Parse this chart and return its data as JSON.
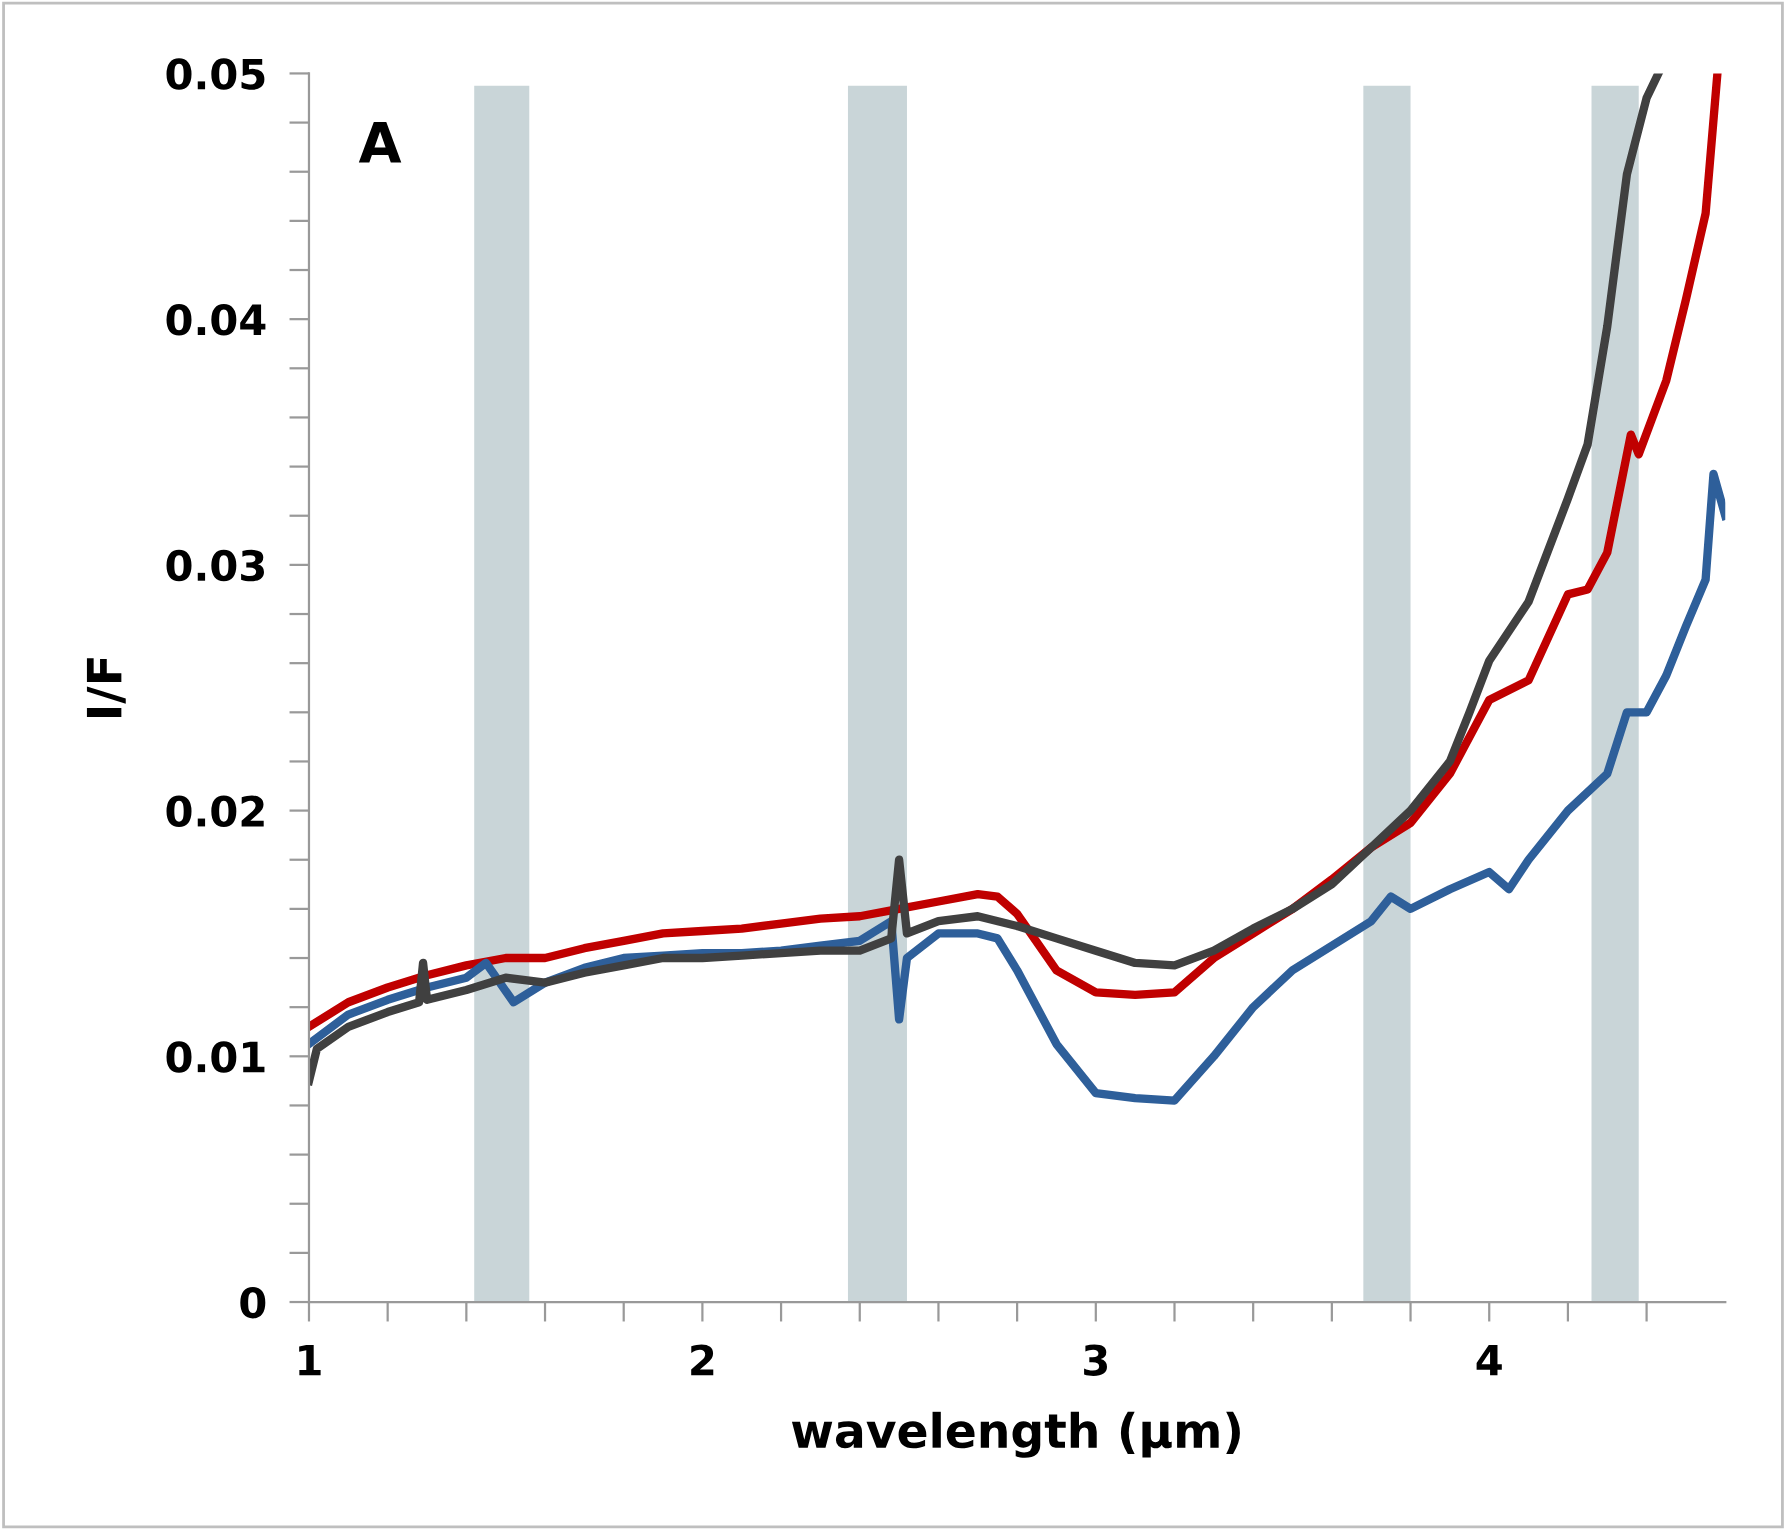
{
  "chart_data": {
    "type": "line",
    "xlabel": "wavelength (µm)",
    "ylabel": "I/F",
    "annotations": [
      "A"
    ],
    "xlim": [
      1,
      4.6
    ],
    "ylim": [
      0,
      0.05
    ],
    "xticks": [
      1,
      {
        "value": 1.2,
        "label": null
      },
      {
        "value": 1.4,
        "label": null
      },
      {
        "value": 1.6,
        "label": null
      },
      {
        "value": 1.8,
        "label": null
      },
      2,
      {
        "value": 2.2,
        "label": null
      },
      {
        "value": 2.4,
        "label": null
      },
      {
        "value": 2.6,
        "label": null
      },
      {
        "value": 2.8,
        "label": null
      },
      3,
      {
        "value": 3.2,
        "label": null
      },
      {
        "value": 3.4,
        "label": null
      },
      {
        "value": 3.6,
        "label": null
      },
      {
        "value": 3.8,
        "label": null
      },
      4,
      {
        "value": 4.2,
        "label": null
      },
      {
        "value": 4.4,
        "label": null
      }
    ],
    "yticks": [
      0,
      {
        "value": 0.002,
        "label": null
      },
      {
        "value": 0.004,
        "label": null
      },
      {
        "value": 0.006,
        "label": null
      },
      {
        "value": 0.008,
        "label": null
      },
      0.01,
      {
        "value": 0.012,
        "label": null
      },
      {
        "value": 0.014,
        "label": null
      },
      {
        "value": 0.016,
        "label": null
      },
      {
        "value": 0.018,
        "label": null
      },
      0.02,
      {
        "value": 0.022,
        "label": null
      },
      {
        "value": 0.024,
        "label": null
      },
      {
        "value": 0.026,
        "label": null
      },
      {
        "value": 0.028,
        "label": null
      },
      0.03,
      {
        "value": 0.032,
        "label": null
      },
      {
        "value": 0.034,
        "label": null
      },
      {
        "value": 0.036,
        "label": null
      },
      {
        "value": 0.038,
        "label": null
      },
      0.04,
      {
        "value": 0.042,
        "label": null
      },
      {
        "value": 0.044,
        "label": null
      },
      {
        "value": 0.046,
        "label": null
      },
      {
        "value": 0.048,
        "label": null
      },
      0.05
    ],
    "grid": false,
    "legend": false,
    "marker": "none",
    "line_style": "solid",
    "bands": [
      {
        "axis": "x",
        "from": 1.42,
        "to": 1.56,
        "color": "#c9d5d8"
      },
      {
        "axis": "x",
        "from": 2.37,
        "to": 2.52,
        "color": "#c9d5d8"
      },
      {
        "axis": "x",
        "from": 3.68,
        "to": 3.8,
        "color": "#c9d5d8"
      },
      {
        "axis": "x",
        "from": 4.26,
        "to": 4.38,
        "color": "#c9d5d8"
      }
    ],
    "series": [
      {
        "color": "#c00000",
        "x": [
          1.0,
          1.1,
          1.2,
          1.3,
          1.4,
          1.5,
          1.6,
          1.7,
          1.8,
          1.9,
          2.0,
          2.1,
          2.2,
          2.3,
          2.4,
          2.5,
          2.6,
          2.7,
          2.75,
          2.8,
          2.9,
          3.0,
          3.1,
          3.2,
          3.3,
          3.4,
          3.5,
          3.6,
          3.7,
          3.8,
          3.9,
          3.95,
          4.0,
          4.1,
          4.2,
          4.25,
          4.3,
          4.36,
          4.38,
          4.45,
          4.5,
          4.55,
          4.58
        ],
        "values": [
          0.0112,
          0.0122,
          0.0128,
          0.0133,
          0.0137,
          0.014,
          0.014,
          0.0144,
          0.0147,
          0.015,
          0.0151,
          0.0152,
          0.0154,
          0.0156,
          0.0157,
          0.016,
          0.0163,
          0.0166,
          0.0165,
          0.0158,
          0.0135,
          0.0126,
          0.0125,
          0.0126,
          0.014,
          0.015,
          0.016,
          0.0172,
          0.0185,
          0.0195,
          0.0215,
          0.023,
          0.0245,
          0.0253,
          0.0288,
          0.029,
          0.0305,
          0.0353,
          0.0345,
          0.0375,
          0.0408,
          0.0443,
          0.05
        ]
      },
      {
        "color": "#2e5f9a",
        "x": [
          1.0,
          1.1,
          1.2,
          1.3,
          1.4,
          1.45,
          1.52,
          1.6,
          1.7,
          1.8,
          1.9,
          2.0,
          2.1,
          2.2,
          2.3,
          2.4,
          2.48,
          2.5,
          2.52,
          2.6,
          2.7,
          2.75,
          2.8,
          2.9,
          2.95,
          3.0,
          3.1,
          3.2,
          3.3,
          3.4,
          3.5,
          3.6,
          3.7,
          3.75,
          3.8,
          3.9,
          4.0,
          4.05,
          4.1,
          4.2,
          4.3,
          4.35,
          4.4,
          4.45,
          4.5,
          4.55,
          4.57,
          4.6
        ],
        "values": [
          0.0105,
          0.0117,
          0.0123,
          0.0128,
          0.0132,
          0.0138,
          0.0122,
          0.013,
          0.0136,
          0.014,
          0.0141,
          0.0142,
          0.0142,
          0.0143,
          0.0145,
          0.0147,
          0.0155,
          0.0115,
          0.014,
          0.015,
          0.015,
          0.0148,
          0.0135,
          0.0105,
          0.0095,
          0.0085,
          0.0083,
          0.0082,
          0.01,
          0.012,
          0.0135,
          0.0145,
          0.0155,
          0.0165,
          0.016,
          0.0168,
          0.0175,
          0.0168,
          0.018,
          0.02,
          0.0215,
          0.024,
          0.024,
          0.0255,
          0.0275,
          0.0294,
          0.0337,
          0.032
        ]
      },
      {
        "color": "#404040",
        "x": [
          1.0,
          1.02,
          1.1,
          1.2,
          1.28,
          1.29,
          1.3,
          1.4,
          1.5,
          1.6,
          1.7,
          1.8,
          1.9,
          2.0,
          2.1,
          2.2,
          2.3,
          2.4,
          2.48,
          2.5,
          2.52,
          2.6,
          2.7,
          2.8,
          2.9,
          3.0,
          3.1,
          3.2,
          3.3,
          3.4,
          3.5,
          3.6,
          3.7,
          3.8,
          3.9,
          3.95,
          4.0,
          4.1,
          4.2,
          4.25,
          4.3,
          4.35,
          4.4,
          4.43
        ],
        "values": [
          0.009,
          0.0103,
          0.0112,
          0.0118,
          0.0122,
          0.0138,
          0.0123,
          0.0127,
          0.0132,
          0.013,
          0.0134,
          0.0137,
          0.014,
          0.014,
          0.0141,
          0.0142,
          0.0143,
          0.0143,
          0.0148,
          0.018,
          0.015,
          0.0155,
          0.0157,
          0.0153,
          0.0148,
          0.0143,
          0.0138,
          0.0137,
          0.0143,
          0.0152,
          0.016,
          0.017,
          0.0185,
          0.02,
          0.022,
          0.024,
          0.0261,
          0.0285,
          0.0327,
          0.0349,
          0.0397,
          0.0459,
          0.049,
          0.05
        ]
      }
    ]
  }
}
